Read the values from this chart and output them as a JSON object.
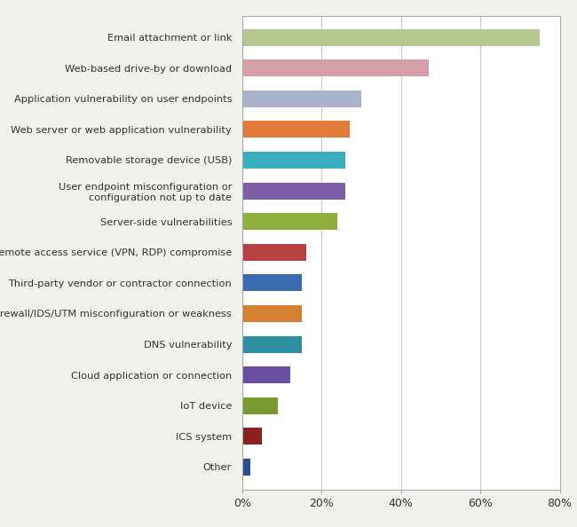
{
  "categories": [
    "Email attachment or link",
    "Web-based drive-by or download",
    "Application vulnerability on user endpoints",
    "Web server or web application vulnerability",
    "Removable storage device (USB)",
    "User endpoint misconfiguration or\nconfiguration not up to date",
    "Server-side vulnerabilities",
    "Remote access service (VPN, RDP) compromise",
    "Third-party vendor or contractor connection",
    "Firewall/IDS/UTM misconfiguration or weakness",
    "DNS vulnerability",
    "Cloud application or connection",
    "IoT device",
    "ICS system",
    "Other"
  ],
  "values": [
    75,
    47,
    30,
    27,
    26,
    26,
    24,
    16,
    15,
    15,
    15,
    12,
    9,
    5,
    2
  ],
  "colors": [
    "#b5c98e",
    "#d4a0a8",
    "#a9b3cc",
    "#e07b39",
    "#3aaebc",
    "#7b5ea7",
    "#8faf3c",
    "#b84040",
    "#3a6ab0",
    "#d48030",
    "#2e8fa0",
    "#6a4fa0",
    "#7a9a30",
    "#8b2020",
    "#2a4e8a"
  ],
  "xlim": [
    0,
    80
  ],
  "xticks": [
    0,
    20,
    40,
    60,
    80
  ],
  "xticklabels": [
    "0%",
    "20%",
    "40%",
    "60%",
    "80%"
  ],
  "background_color": "#ffffff",
  "fig_background_color": "#f0f0ec",
  "grid_color": "#cccccc",
  "bar_height": 0.55
}
